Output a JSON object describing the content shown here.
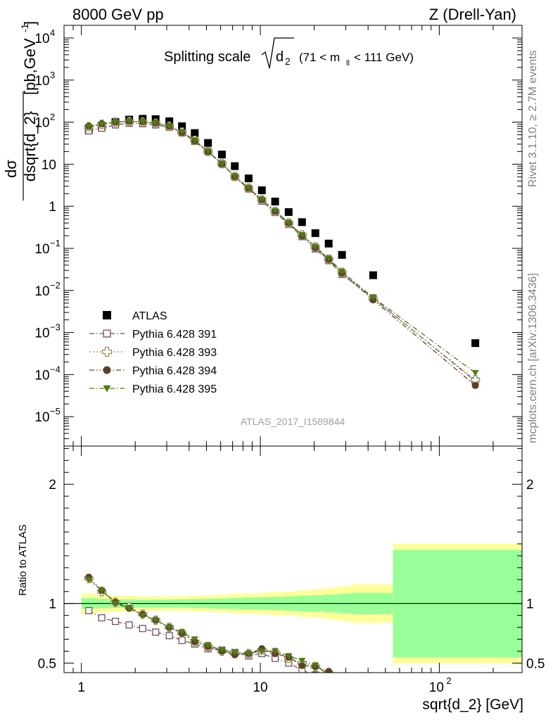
{
  "header": {
    "left": "8000 GeV pp",
    "right": "Z (Drell-Yan)"
  },
  "side_labels": {
    "rivet": "Rivet 3.1.10, ≥ 2.7M events",
    "mcplots": "mcplots.cern.ch [arXiv:1306.3436]"
  },
  "title": {
    "main": "Splitting scale",
    "variable": "d",
    "variable_sub": "2",
    "cut_open": "(71 < m",
    "cut_sub": "ll",
    "cut_close": "< 111 GeV)"
  },
  "watermark": "ATLAS_2017_I1589844",
  "colors": {
    "atlas": "#000000",
    "p391": "#725264",
    "p393": "#9A8A50",
    "p394": "#5C4127",
    "p395": "#4F7A16",
    "band_yellow": "#ffff99",
    "band_green": "#99ff99"
  },
  "chart_data": [
    {
      "type": "scatter",
      "panel": "main",
      "ylabel_top": "dσ",
      "ylabel_bottom": "dsqrt{d_2}",
      "ylabel_unit": "[pb,GeV",
      "ylabel_unit_exp": "-1",
      "ylabel_unit_close": "]",
      "yscale": "log",
      "xscale": "log",
      "xlim": [
        0.8,
        290
      ],
      "ylim": [
        2e-06,
        20000
      ],
      "y_ticks": [
        {
          "v": 1e-05,
          "base": "10",
          "exp": "−5"
        },
        {
          "v": 0.0001,
          "base": "10",
          "exp": "−4"
        },
        {
          "v": 0.001,
          "base": "10",
          "exp": "−3"
        },
        {
          "v": 0.01,
          "base": "10",
          "exp": "−2"
        },
        {
          "v": 0.1,
          "base": "10",
          "exp": "−1"
        },
        {
          "v": 1,
          "base": "1",
          "exp": ""
        },
        {
          "v": 10,
          "base": "10",
          "exp": ""
        },
        {
          "v": 100,
          "base": "10",
          "exp": "2"
        },
        {
          "v": 1000,
          "base": "10",
          "exp": "3"
        },
        {
          "v": 10000,
          "base": "10",
          "exp": "4"
        }
      ],
      "legend_position": "bottom-left",
      "series": [
        {
          "name": "ATLAS",
          "marker": "square-filled",
          "color_key": "atlas",
          "line": "none",
          "x": [
            1.1,
            1.3,
            1.55,
            1.85,
            2.2,
            2.6,
            3.1,
            3.65,
            4.3,
            5.1,
            6.1,
            7.2,
            8.6,
            10.2,
            12.1,
            14.4,
            17.1,
            20.3,
            24.1,
            28.6,
            42.7,
            159
          ],
          "y": [
            65,
            80,
            100,
            115,
            120,
            118,
            105,
            80,
            55,
            32,
            17,
            9,
            4.6,
            2.4,
            1.3,
            0.73,
            0.42,
            0.23,
            0.13,
            0.07,
            0.023,
            0.00056
          ]
        },
        {
          "name": "Pythia 6.428 391",
          "marker": "square-open",
          "color_key": "p391",
          "line": "dash-dot",
          "x": [
            1.1,
            1.3,
            1.55,
            1.85,
            2.2,
            2.6,
            3.1,
            3.65,
            4.3,
            5.1,
            6.1,
            7.2,
            8.6,
            10.2,
            12.1,
            14.4,
            17.1,
            20.3,
            24.1,
            28.6,
            42.7,
            159
          ],
          "y": [
            62,
            72,
            86,
            94,
            92,
            86,
            75,
            56,
            35,
            20,
            10.3,
            5.0,
            2.6,
            1.32,
            0.71,
            0.37,
            0.19,
            0.097,
            0.051,
            0.024,
            0.0066,
            7e-05
          ]
        },
        {
          "name": "Pythia 6.428 393",
          "marker": "cross-open",
          "color_key": "p393",
          "line": "dotted",
          "x": [
            1.1,
            1.3,
            1.55,
            1.85,
            2.2,
            2.6,
            3.1,
            3.65,
            4.3,
            5.1,
            6.1,
            7.2,
            8.6,
            10.2,
            12.1,
            14.4,
            17.1,
            20.3,
            24.1,
            28.6,
            42.7,
            159
          ],
          "y": [
            78,
            89,
            100,
            104,
            101,
            94,
            80,
            58,
            37,
            20,
            10.3,
            5.1,
            2.7,
            1.43,
            0.76,
            0.4,
            0.21,
            0.108,
            0.056,
            0.027,
            0.0064,
            7.5e-05
          ]
        },
        {
          "name": "Pythia 6.428 394",
          "marker": "circle-filled",
          "color_key": "p394",
          "line": "dash-dot-dot",
          "x": [
            1.1,
            1.3,
            1.55,
            1.85,
            2.2,
            2.6,
            3.1,
            3.65,
            4.3,
            5.1,
            6.1,
            7.2,
            8.6,
            10.2,
            12.1,
            14.4,
            17.1,
            20.3,
            24.1,
            28.6,
            42.7,
            159
          ],
          "y": [
            80,
            91,
            101,
            105,
            102,
            95,
            80,
            57,
            36,
            20,
            10.2,
            5.1,
            2.7,
            1.43,
            0.76,
            0.4,
            0.2,
            0.105,
            0.055,
            0.026,
            0.006,
            5.5e-05
          ]
        },
        {
          "name": "Pythia 6.428 395",
          "marker": "triangle-down-filled",
          "color_key": "p395",
          "line": "dash-dot",
          "x": [
            1.1,
            1.3,
            1.55,
            1.85,
            2.2,
            2.6,
            3.1,
            3.65,
            4.3,
            5.1,
            6.1,
            7.2,
            8.6,
            10.2,
            12.1,
            14.4,
            17.1,
            20.3,
            24.1,
            28.6,
            42.7,
            159
          ],
          "y": [
            78,
            90,
            100,
            105,
            101,
            95,
            80,
            58,
            37,
            20.5,
            10.3,
            5.2,
            2.75,
            1.45,
            0.78,
            0.41,
            0.21,
            0.11,
            0.058,
            0.028,
            0.0068,
            0.00011
          ]
        }
      ]
    },
    {
      "type": "line",
      "panel": "ratio",
      "ylabel": "Ratio to ATLAS",
      "xlabel": "sqrt{d_2} [GeV]",
      "xscale": "log",
      "xlim": [
        0.8,
        290
      ],
      "ylim": [
        0.42,
        2.32
      ],
      "y_ticks": [
        0.5,
        1,
        2
      ],
      "x_ticks": [
        {
          "v": 1,
          "label": "1",
          "exp": ""
        },
        {
          "v": 10,
          "label": "10",
          "exp": ""
        },
        {
          "v": 100,
          "label": "10",
          "exp": "2"
        }
      ],
      "bands": {
        "edges": [
          1.0,
          1.2,
          1.42,
          1.68,
          2.0,
          2.38,
          2.83,
          3.36,
          4.0,
          4.75,
          5.65,
          6.72,
          8.0,
          9.5,
          11.3,
          13.4,
          16.0,
          19.0,
          22.6,
          26.9,
          32.0,
          55.0,
          290
        ],
        "yellow_half": [
          0.085,
          0.075,
          0.07,
          0.065,
          0.06,
          0.06,
          0.06,
          0.06,
          0.065,
          0.07,
          0.075,
          0.08,
          0.085,
          0.09,
          0.095,
          0.1,
          0.11,
          0.12,
          0.13,
          0.145,
          0.16,
          0.5
        ],
        "green_half": [
          0.045,
          0.04,
          0.038,
          0.035,
          0.033,
          0.033,
          0.033,
          0.035,
          0.038,
          0.04,
          0.043,
          0.047,
          0.05,
          0.053,
          0.056,
          0.06,
          0.065,
          0.07,
          0.075,
          0.082,
          0.09,
          0.45
        ],
        "top_clip_yellow": 2.32,
        "top_clip_green": 1.92
      },
      "series": [
        {
          "name": "Pythia 6.428 391",
          "color_key": "p391",
          "marker": "square-open",
          "line": "dash-dot",
          "x": [
            1.1,
            1.3,
            1.55,
            1.85,
            2.2,
            2.6,
            3.1,
            3.65,
            4.3,
            5.1,
            6.1,
            7.2,
            8.6,
            10.2,
            12.1,
            14.4,
            17.1,
            20.3
          ],
          "y": [
            0.94,
            0.88,
            0.85,
            0.82,
            0.79,
            0.76,
            0.73,
            0.69,
            0.66,
            0.62,
            0.61,
            0.59,
            0.56,
            0.58,
            0.54,
            0.5,
            0.44,
            0.4
          ]
        },
        {
          "name": "Pythia 6.428 393",
          "color_key": "p393",
          "marker": "cross-open",
          "line": "dotted",
          "x": [
            1.1,
            1.3,
            1.55,
            1.85,
            2.2,
            2.6,
            3.1,
            3.65,
            4.3,
            5.1,
            6.1,
            7.2,
            8.6,
            10.2,
            12.1,
            14.4,
            17.1,
            20.3,
            24.1
          ],
          "y": [
            1.21,
            1.1,
            1.01,
            0.97,
            0.91,
            0.86,
            0.8,
            0.75,
            0.68,
            0.64,
            0.6,
            0.58,
            0.58,
            0.61,
            0.59,
            0.54,
            0.5,
            0.47,
            0.42
          ]
        },
        {
          "name": "Pythia 6.428 394",
          "color_key": "p394",
          "marker": "circle-filled",
          "line": "dash-dot-dot",
          "x": [
            1.1,
            1.3,
            1.55,
            1.85,
            2.2,
            2.6,
            3.1,
            3.65,
            4.3,
            5.1,
            6.1,
            7.2,
            8.6,
            10.2,
            12.1,
            14.4,
            17.1,
            20.3,
            24.1
          ],
          "y": [
            1.22,
            1.11,
            1.01,
            0.96,
            0.91,
            0.86,
            0.8,
            0.75,
            0.68,
            0.64,
            0.6,
            0.57,
            0.58,
            0.62,
            0.58,
            0.55,
            0.48,
            0.47,
            0.43
          ]
        },
        {
          "name": "Pythia 6.428 395",
          "color_key": "p395",
          "marker": "triangle-down-filled",
          "line": "dash-dot",
          "x": [
            1.1,
            1.3,
            1.55,
            1.85,
            2.2,
            2.6,
            3.1,
            3.65,
            4.3,
            5.1,
            6.1,
            7.2,
            8.6,
            10.2,
            12.1,
            14.4,
            17.1,
            20.3,
            24.1
          ],
          "y": [
            1.2,
            1.11,
            1.0,
            0.96,
            0.9,
            0.86,
            0.8,
            0.76,
            0.7,
            0.65,
            0.61,
            0.59,
            0.58,
            0.6,
            0.6,
            0.56,
            0.52,
            0.48,
            0.4
          ]
        }
      ]
    }
  ]
}
